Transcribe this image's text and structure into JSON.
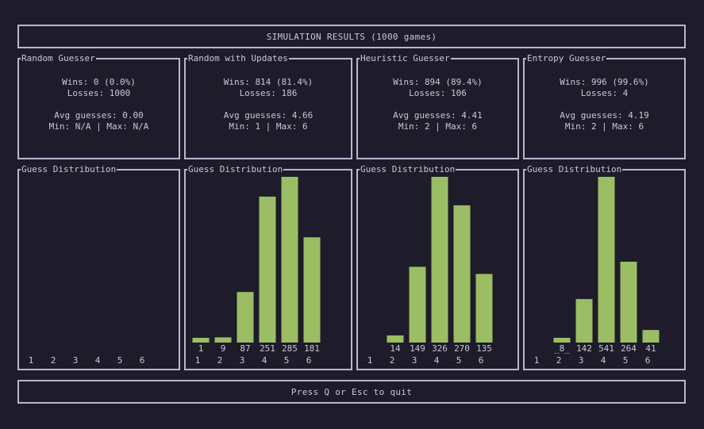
{
  "header": {
    "title": "SIMULATION RESULTS (1000 games)"
  },
  "footer": {
    "hint": "Press Q or Esc to quit"
  },
  "colors": {
    "bar": "#9bbd63",
    "border": "#b9b6d2",
    "text": "#c8c8d8",
    "background": "#1e1c2a"
  },
  "strategies": [
    {
      "name": "Random Guesser",
      "wins": "Wins: 0 (0.0%)",
      "losses": "Losses: 1000",
      "avg": "Avg guesses: 0.00",
      "range": "Min: N/A | Max: N/A"
    },
    {
      "name": "Random with Updates",
      "wins": "Wins: 814 (81.4%)",
      "losses": "Losses: 186",
      "avg": "Avg guesses: 4.66",
      "range": "Min: 1 | Max: 6"
    },
    {
      "name": "Heuristic Guesser",
      "wins": "Wins: 894 (89.4%)",
      "losses": "Losses: 106",
      "avg": "Avg guesses: 4.41",
      "range": "Min: 2 | Max: 6"
    },
    {
      "name": "Entropy Guesser",
      "wins": "Wins: 996 (99.6%)",
      "losses": "Losses: 4",
      "avg": "Avg guesses: 4.19",
      "range": "Min: 2 | Max: 6"
    }
  ],
  "chart_data": [
    {
      "type": "bar",
      "title": "Guess Distribution",
      "strategy": "Random Guesser",
      "categories": [
        "1",
        "2",
        "3",
        "4",
        "5",
        "6"
      ],
      "values": [
        0,
        0,
        0,
        0,
        0,
        0
      ],
      "labels": [
        "",
        "",
        "",
        "",
        "",
        ""
      ]
    },
    {
      "type": "bar",
      "title": "Guess Distribution",
      "strategy": "Random with Updates",
      "categories": [
        "1",
        "2",
        "3",
        "4",
        "5",
        "6"
      ],
      "values": [
        1,
        9,
        87,
        251,
        285,
        181
      ],
      "labels": [
        "1",
        "9",
        "87",
        "251",
        "285",
        "181"
      ]
    },
    {
      "type": "bar",
      "title": "Guess Distribution",
      "strategy": "Heuristic Guesser",
      "categories": [
        "1",
        "2",
        "3",
        "4",
        "5",
        "6"
      ],
      "values": [
        0,
        14,
        149,
        326,
        270,
        135
      ],
      "labels": [
        "",
        "14",
        "149",
        "326",
        "270",
        "135"
      ]
    },
    {
      "type": "bar",
      "title": "Guess Distribution",
      "strategy": "Entropy Guesser",
      "categories": [
        "1",
        "2",
        "3",
        "4",
        "5",
        "6"
      ],
      "values": [
        0,
        8,
        142,
        541,
        264,
        41
      ],
      "labels": [
        "",
        "_8_",
        "142",
        "541",
        "264",
        "41"
      ]
    }
  ]
}
